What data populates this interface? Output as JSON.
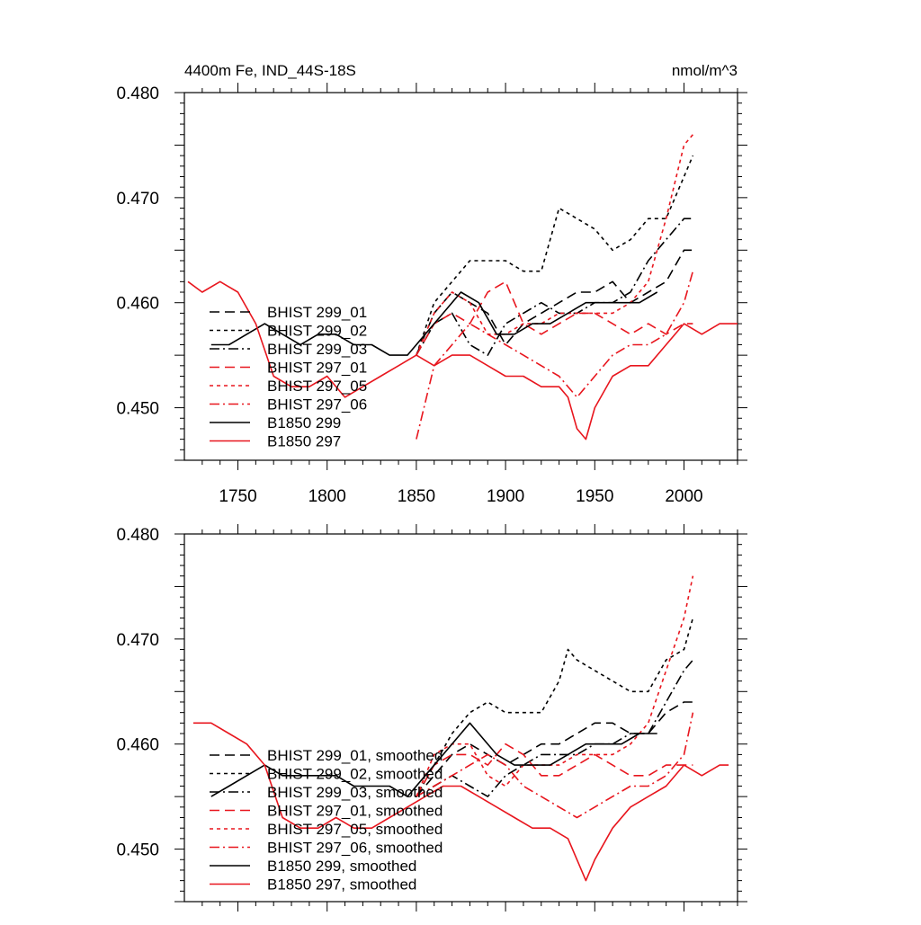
{
  "chart_data": [
    {
      "type": "line",
      "title": "4400m Fe, IND_44S-18S",
      "units_label": "nmol/m^3",
      "xlim": [
        1720,
        2030
      ],
      "ylim": [
        0.445,
        0.48
      ],
      "xticks": [
        1750,
        1800,
        1850,
        1900,
        1950,
        2000
      ],
      "xtick_labels": [
        "1750",
        "1800",
        "1850",
        "1900",
        "1950",
        "2000"
      ],
      "yticks": [
        0.45,
        0.46,
        0.47,
        0.48
      ],
      "ytick_labels": [
        "0.450",
        "0.460",
        "0.470",
        "0.480"
      ],
      "legend_position": "lower-left",
      "series": [
        {
          "name": "BHIST 299_01",
          "color": "#000000",
          "dash": "long-dash",
          "x": [
            1850,
            1860,
            1870,
            1880,
            1890,
            1900,
            1910,
            1920,
            1930,
            1940,
            1950,
            1960,
            1970,
            1980,
            1990,
            2000,
            2005
          ],
          "y": [
            0.455,
            0.459,
            0.461,
            0.46,
            0.459,
            0.456,
            0.458,
            0.459,
            0.46,
            0.461,
            0.461,
            0.462,
            0.46,
            0.461,
            0.462,
            0.465,
            0.465
          ]
        },
        {
          "name": "BHIST 299_02",
          "color": "#000000",
          "dash": "short-dash",
          "x": [
            1850,
            1860,
            1870,
            1880,
            1890,
            1900,
            1910,
            1920,
            1930,
            1940,
            1950,
            1960,
            1970,
            1980,
            1990,
            2000,
            2005
          ],
          "y": [
            0.455,
            0.46,
            0.462,
            0.464,
            0.464,
            0.464,
            0.463,
            0.463,
            0.469,
            0.468,
            0.467,
            0.465,
            0.466,
            0.468,
            0.468,
            0.472,
            0.474
          ]
        },
        {
          "name": "BHIST 299_03",
          "color": "#000000",
          "dash": "dash-dot",
          "x": [
            1850,
            1860,
            1870,
            1880,
            1890,
            1900,
            1910,
            1920,
            1930,
            1940,
            1950,
            1960,
            1970,
            1980,
            1990,
            2000,
            2005
          ],
          "y": [
            0.455,
            0.458,
            0.459,
            0.456,
            0.455,
            0.458,
            0.459,
            0.46,
            0.459,
            0.459,
            0.46,
            0.46,
            0.461,
            0.464,
            0.466,
            0.468,
            0.468
          ]
        },
        {
          "name": "BHIST 297_01",
          "color": "#e8161e",
          "dash": "long-dash",
          "x": [
            1850,
            1860,
            1870,
            1880,
            1890,
            1900,
            1910,
            1920,
            1930,
            1940,
            1950,
            1960,
            1970,
            1980,
            1990,
            2000,
            2005
          ],
          "y": [
            0.455,
            0.458,
            0.459,
            0.458,
            0.461,
            0.462,
            0.458,
            0.457,
            0.458,
            0.459,
            0.459,
            0.458,
            0.457,
            0.458,
            0.457,
            0.458,
            0.458
          ]
        },
        {
          "name": "BHIST 297_05",
          "color": "#e8161e",
          "dash": "short-dash",
          "x": [
            1850,
            1860,
            1870,
            1880,
            1890,
            1900,
            1910,
            1920,
            1930,
            1940,
            1950,
            1960,
            1970,
            1980,
            1990,
            2000,
            2005
          ],
          "y": [
            0.455,
            0.459,
            0.461,
            0.46,
            0.457,
            0.457,
            0.458,
            0.458,
            0.459,
            0.459,
            0.459,
            0.459,
            0.46,
            0.462,
            0.468,
            0.475,
            0.476
          ]
        },
        {
          "name": "BHIST 297_06",
          "color": "#e8161e",
          "dash": "dash-dot",
          "x": [
            1850,
            1860,
            1870,
            1880,
            1890,
            1900,
            1910,
            1920,
            1930,
            1940,
            1950,
            1960,
            1970,
            1980,
            1990,
            2000,
            2005
          ],
          "y": [
            0.447,
            0.454,
            0.456,
            0.458,
            0.457,
            0.456,
            0.455,
            0.454,
            0.453,
            0.451,
            0.453,
            0.455,
            0.456,
            0.456,
            0.457,
            0.46,
            0.463
          ]
        },
        {
          "name": "B1850 299",
          "color": "#000000",
          "dash": "solid",
          "x": [
            1735,
            1745,
            1755,
            1765,
            1775,
            1785,
            1795,
            1805,
            1815,
            1825,
            1835,
            1845,
            1855,
            1865,
            1875,
            1885,
            1895,
            1905,
            1915,
            1925,
            1935,
            1945,
            1955,
            1965,
            1975,
            1985
          ],
          "y": [
            0.456,
            0.456,
            0.457,
            0.458,
            0.457,
            0.456,
            0.457,
            0.457,
            0.456,
            0.456,
            0.455,
            0.455,
            0.457,
            0.459,
            0.461,
            0.46,
            0.457,
            0.457,
            0.458,
            0.458,
            0.459,
            0.46,
            0.46,
            0.46,
            0.46,
            0.461
          ]
        },
        {
          "name": "B1850 297",
          "color": "#e8161e",
          "dash": "solid",
          "x": [
            1722,
            1730,
            1740,
            1750,
            1760,
            1770,
            1780,
            1790,
            1800,
            1810,
            1820,
            1830,
            1840,
            1850,
            1860,
            1870,
            1880,
            1890,
            1900,
            1910,
            1920,
            1930,
            1935,
            1940,
            1945,
            1950,
            1960,
            1970,
            1980,
            1990,
            2000,
            2010,
            2020,
            2030
          ],
          "y": [
            0.462,
            0.461,
            0.462,
            0.461,
            0.458,
            0.453,
            0.452,
            0.452,
            0.453,
            0.451,
            0.452,
            0.453,
            0.454,
            0.455,
            0.454,
            0.455,
            0.455,
            0.454,
            0.453,
            0.453,
            0.452,
            0.452,
            0.451,
            0.448,
            0.447,
            0.45,
            0.453,
            0.454,
            0.454,
            0.456,
            0.458,
            0.457,
            0.458,
            0.458
          ]
        }
      ]
    },
    {
      "type": "line",
      "xlim": [
        1720,
        2030
      ],
      "ylim": [
        0.445,
        0.48
      ],
      "xticks": [
        1750,
        1800,
        1850,
        1900,
        1950,
        2000
      ],
      "yticks": [
        0.45,
        0.46,
        0.47,
        0.48
      ],
      "ytick_labels": [
        "0.450",
        "0.460",
        "0.470",
        "0.480"
      ],
      "legend_position": "lower-left",
      "series": [
        {
          "name": "BHIST 299_01, smoothed",
          "color": "#000000",
          "dash": "long-dash",
          "x": [
            1850,
            1860,
            1870,
            1880,
            1890,
            1900,
            1910,
            1920,
            1930,
            1940,
            1950,
            1960,
            1970,
            1980,
            1990,
            2000,
            2005
          ],
          "y": [
            0.455,
            0.457,
            0.459,
            0.46,
            0.459,
            0.458,
            0.459,
            0.46,
            0.46,
            0.461,
            0.462,
            0.462,
            0.461,
            0.461,
            0.463,
            0.464,
            0.464
          ]
        },
        {
          "name": "BHIST 299_02, smoothed",
          "color": "#000000",
          "dash": "short-dash",
          "x": [
            1850,
            1860,
            1870,
            1880,
            1890,
            1900,
            1910,
            1920,
            1930,
            1935,
            1940,
            1950,
            1960,
            1970,
            1980,
            1990,
            2000,
            2005
          ],
          "y": [
            0.455,
            0.458,
            0.461,
            0.463,
            0.464,
            0.463,
            0.463,
            0.463,
            0.466,
            0.469,
            0.468,
            0.467,
            0.466,
            0.465,
            0.465,
            0.468,
            0.469,
            0.472
          ]
        },
        {
          "name": "BHIST 299_03, smoothed",
          "color": "#000000",
          "dash": "dash-dot",
          "x": [
            1850,
            1860,
            1870,
            1880,
            1890,
            1900,
            1910,
            1920,
            1930,
            1940,
            1950,
            1960,
            1970,
            1980,
            1990,
            2000,
            2005
          ],
          "y": [
            0.455,
            0.456,
            0.457,
            0.456,
            0.455,
            0.457,
            0.458,
            0.459,
            0.459,
            0.459,
            0.46,
            0.46,
            0.461,
            0.461,
            0.464,
            0.467,
            0.468
          ]
        },
        {
          "name": "BHIST 297_01, smoothed",
          "color": "#e8161e",
          "dash": "long-dash",
          "x": [
            1850,
            1860,
            1870,
            1880,
            1890,
            1900,
            1910,
            1920,
            1930,
            1940,
            1950,
            1960,
            1970,
            1980,
            1990,
            2000,
            2005
          ],
          "y": [
            0.455,
            0.458,
            0.459,
            0.459,
            0.458,
            0.46,
            0.459,
            0.457,
            0.457,
            0.458,
            0.459,
            0.458,
            0.457,
            0.457,
            0.458,
            0.458,
            0.458
          ]
        },
        {
          "name": "BHIST 297_05, smoothed",
          "color": "#e8161e",
          "dash": "short-dash",
          "x": [
            1850,
            1860,
            1870,
            1880,
            1890,
            1900,
            1910,
            1920,
            1930,
            1940,
            1950,
            1960,
            1970,
            1980,
            1990,
            2000,
            2005
          ],
          "y": [
            0.455,
            0.459,
            0.46,
            0.46,
            0.457,
            0.456,
            0.458,
            0.458,
            0.458,
            0.459,
            0.459,
            0.459,
            0.46,
            0.462,
            0.467,
            0.472,
            0.476
          ]
        },
        {
          "name": "BHIST 297_06, smoothed",
          "color": "#e8161e",
          "dash": "dash-dot",
          "x": [
            1850,
            1860,
            1870,
            1880,
            1890,
            1900,
            1910,
            1920,
            1930,
            1940,
            1950,
            1960,
            1970,
            1980,
            1990,
            2000,
            2005
          ],
          "y": [
            0.455,
            0.456,
            0.457,
            0.458,
            0.459,
            0.458,
            0.456,
            0.455,
            0.454,
            0.453,
            0.454,
            0.455,
            0.456,
            0.456,
            0.457,
            0.459,
            0.463
          ]
        },
        {
          "name": "B1850 299, smoothed",
          "color": "#000000",
          "dash": "solid",
          "x": [
            1735,
            1745,
            1755,
            1765,
            1775,
            1785,
            1795,
            1805,
            1815,
            1825,
            1835,
            1845,
            1855,
            1865,
            1875,
            1880,
            1885,
            1895,
            1905,
            1915,
            1925,
            1935,
            1945,
            1955,
            1965,
            1975,
            1985
          ],
          "y": [
            0.455,
            0.456,
            0.457,
            0.458,
            0.457,
            0.457,
            0.457,
            0.457,
            0.456,
            0.456,
            0.456,
            0.455,
            0.457,
            0.459,
            0.461,
            0.462,
            0.461,
            0.459,
            0.458,
            0.458,
            0.458,
            0.459,
            0.46,
            0.46,
            0.46,
            0.461,
            0.461
          ]
        },
        {
          "name": "B1850 297, smoothed",
          "color": "#e8161e",
          "dash": "solid",
          "x": [
            1725,
            1735,
            1745,
            1755,
            1765,
            1775,
            1785,
            1795,
            1805,
            1815,
            1825,
            1835,
            1845,
            1855,
            1865,
            1875,
            1885,
            1895,
            1905,
            1915,
            1925,
            1935,
            1940,
            1945,
            1950,
            1960,
            1970,
            1980,
            1990,
            2000,
            2010,
            2020,
            2025
          ],
          "y": [
            0.462,
            0.462,
            0.461,
            0.46,
            0.458,
            0.453,
            0.452,
            0.452,
            0.453,
            0.452,
            0.452,
            0.453,
            0.454,
            0.455,
            0.456,
            0.456,
            0.455,
            0.454,
            0.453,
            0.452,
            0.452,
            0.451,
            0.449,
            0.447,
            0.449,
            0.452,
            0.454,
            0.455,
            0.456,
            0.458,
            0.457,
            0.458,
            0.458
          ]
        }
      ]
    }
  ]
}
